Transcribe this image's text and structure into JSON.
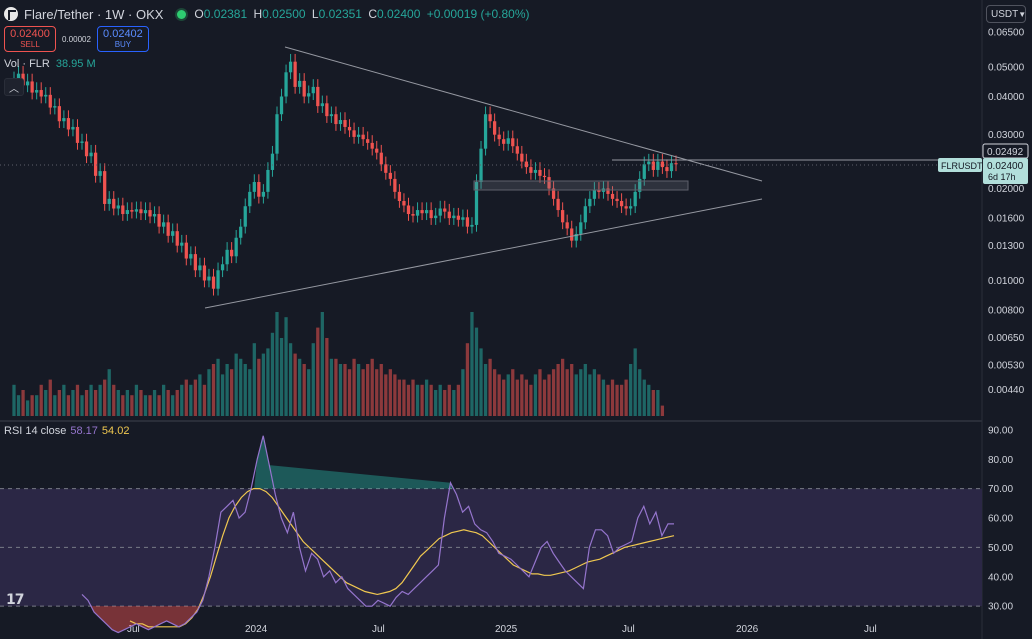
{
  "header": {
    "symbol": "Flare/Tether · 1W · OKX",
    "ohlc": [
      {
        "key": "O",
        "value": "0.02381"
      },
      {
        "key": "H",
        "value": "0.02500"
      },
      {
        "key": "L",
        "value": "0.02351"
      },
      {
        "key": "C",
        "value": "0.02400"
      },
      {
        "key": "",
        "value": "+0.00019 (+0.80%)"
      }
    ]
  },
  "trade": {
    "sell_price": "0.02400",
    "sell_label": "SELL",
    "spread": "0.00002",
    "buy_price": "0.02402",
    "buy_label": "BUY"
  },
  "volume_legend": {
    "label": "Vol · FLR",
    "value": "38.95 M"
  },
  "collapse_icon": "chevron-up-icon",
  "rsi_legend": {
    "label": "RSI 14 close",
    "rsi": "58.17",
    "ma": "54.02"
  },
  "currency": "USDT",
  "price_tags": {
    "high": "0.02492",
    "symbol": "FLRUSDT",
    "last": "0.02400",
    "countdown": "6d 17h"
  },
  "colors": {
    "up": "#26a69a",
    "down": "#ef5350",
    "rsi_line": "#9575cd",
    "rsi_ma": "#f0c850",
    "background": "#161a25",
    "rsi_band": "#2b2745"
  },
  "chart_data": [
    {
      "type": "candlestick",
      "title": "Flare/Tether · 1W · OKX",
      "y_scale": "log",
      "y_ticks": [
        "0.06500",
        "0.05000",
        "0.04000",
        "0.03000",
        "0.02000",
        "0.01600",
        "0.01300",
        "0.01000",
        "0.00800",
        "0.00650",
        "0.00530",
        "0.00440"
      ],
      "x_ticks": [
        "Jul",
        "2024",
        "Jul",
        "2025",
        "Jul",
        "2026",
        "Jul"
      ],
      "close": [
        0.0455,
        0.0475,
        0.0435,
        0.0448,
        0.0412,
        0.042,
        0.04,
        0.0405,
        0.0368,
        0.0372,
        0.0332,
        0.034,
        0.0312,
        0.0318,
        0.0282,
        0.0285,
        0.0255,
        0.0262,
        0.022,
        0.0228,
        0.0178,
        0.0185,
        0.0172,
        0.0176,
        0.0165,
        0.017,
        0.0168,
        0.0171,
        0.0166,
        0.017,
        0.0162,
        0.0165,
        0.015,
        0.0155,
        0.014,
        0.0145,
        0.013,
        0.0133,
        0.0118,
        0.0122,
        0.0108,
        0.0112,
        0.01,
        0.0103,
        0.0094,
        0.0108,
        0.0113,
        0.0126,
        0.012,
        0.0138,
        0.015,
        0.0175,
        0.0195,
        0.021,
        0.0188,
        0.0195,
        0.023,
        0.026,
        0.035,
        0.04,
        0.048,
        0.052,
        0.043,
        0.045,
        0.04,
        0.041,
        0.043,
        0.0372,
        0.038,
        0.0345,
        0.035,
        0.0325,
        0.0335,
        0.0318,
        0.031,
        0.0295,
        0.03,
        0.029,
        0.0282,
        0.027,
        0.0262,
        0.024,
        0.0225,
        0.0215,
        0.0195,
        0.0182,
        0.0176,
        0.0165,
        0.0163,
        0.017,
        0.0166,
        0.017,
        0.016,
        0.0163,
        0.0172,
        0.0168,
        0.016,
        0.0163,
        0.0158,
        0.0161,
        0.015,
        0.0152,
        0.021,
        0.027,
        0.035,
        0.0332,
        0.03,
        0.029,
        0.028,
        0.0292,
        0.0275,
        0.026,
        0.0245,
        0.0235,
        0.0225,
        0.023,
        0.022,
        0.0218,
        0.02,
        0.0185,
        0.017,
        0.0155,
        0.0148,
        0.0135,
        0.0142,
        0.0155,
        0.0175,
        0.0185,
        0.0198,
        0.0195,
        0.02,
        0.0192,
        0.0185,
        0.0182,
        0.0175,
        0.0172,
        0.0175,
        0.0195,
        0.0215,
        0.024,
        0.0245,
        0.023,
        0.0245,
        0.0235,
        0.0228,
        0.0242,
        0.024
      ]
    },
    {
      "type": "bar",
      "title": "Vol · FLR",
      "values_relative": [
        0.3,
        0.2,
        0.25,
        0.15,
        0.2,
        0.2,
        0.3,
        0.25,
        0.35,
        0.2,
        0.25,
        0.3,
        0.2,
        0.25,
        0.3,
        0.2,
        0.25,
        0.3,
        0.25,
        0.3,
        0.35,
        0.45,
        0.3,
        0.25,
        0.2,
        0.25,
        0.2,
        0.3,
        0.25,
        0.2,
        0.2,
        0.25,
        0.2,
        0.3,
        0.25,
        0.2,
        0.25,
        0.3,
        0.35,
        0.3,
        0.35,
        0.4,
        0.3,
        0.45,
        0.5,
        0.55,
        0.4,
        0.5,
        0.45,
        0.6,
        0.55,
        0.5,
        0.45,
        0.7,
        0.55,
        0.6,
        0.65,
        0.8,
        1.0,
        0.75,
        0.95,
        0.7,
        0.6,
        0.55,
        0.5,
        0.45,
        0.7,
        0.85,
        1.0,
        0.75,
        0.55,
        0.55,
        0.5,
        0.5,
        0.45,
        0.55,
        0.5,
        0.45,
        0.5,
        0.55,
        0.45,
        0.5,
        0.4,
        0.45,
        0.4,
        0.35,
        0.35,
        0.3,
        0.35,
        0.3,
        0.3,
        0.35,
        0.3,
        0.25,
        0.3,
        0.25,
        0.3,
        0.25,
        0.3,
        0.45,
        0.7,
        1.0,
        0.85,
        0.65,
        0.5,
        0.55,
        0.45,
        0.4,
        0.35,
        0.4,
        0.45,
        0.35,
        0.4,
        0.35,
        0.3,
        0.4,
        0.45,
        0.35,
        0.4,
        0.45,
        0.5,
        0.55,
        0.45,
        0.5,
        0.4,
        0.45,
        0.5,
        0.4,
        0.45,
        0.4,
        0.35,
        0.3,
        0.35,
        0.3,
        0.3,
        0.35,
        0.5,
        0.65,
        0.45,
        0.35,
        0.3,
        0.25,
        0.25,
        0.1
      ]
    },
    {
      "type": "line",
      "title": "RSI 14 close",
      "y_ticks": [
        "90.00",
        "80.00",
        "70.00",
        "60.00",
        "50.00",
        "40.00",
        "30.00"
      ],
      "ylim": [
        27,
        92
      ],
      "band": [
        30,
        70
      ],
      "series": [
        {
          "name": "RSI",
          "values": [
            34,
            32,
            28,
            26,
            24,
            22,
            21,
            22,
            23,
            24,
            23,
            22,
            23,
            24,
            25,
            24,
            23,
            24,
            26,
            28,
            32,
            40,
            50,
            62,
            64,
            66,
            60,
            62,
            70,
            80,
            88,
            78,
            68,
            60,
            55,
            62,
            50,
            42,
            48,
            46,
            40,
            42,
            38,
            40,
            36,
            34,
            32,
            30,
            30,
            32,
            31,
            30,
            33,
            35,
            34,
            36,
            38,
            40,
            42,
            44,
            60,
            72,
            68,
            62,
            64,
            58,
            56,
            55,
            52,
            48,
            47,
            46,
            44,
            42,
            40,
            45,
            50,
            52,
            48,
            45,
            42,
            40,
            38,
            36,
            50,
            56,
            56,
            54,
            48,
            50,
            51,
            52,
            60,
            64,
            58,
            62,
            54,
            58,
            58
          ]
        },
        {
          "name": "MA",
          "values": [
            25,
            24,
            24,
            23,
            23,
            23,
            23,
            23,
            23,
            24,
            26,
            29,
            34,
            40,
            47,
            54,
            60,
            64,
            67,
            69,
            70,
            70,
            69,
            67,
            64,
            61,
            58,
            55,
            52,
            50,
            48,
            46,
            44,
            42,
            40,
            38,
            37,
            36,
            35,
            34.5,
            34,
            34.5,
            35,
            36,
            38,
            41,
            44,
            47,
            49,
            51,
            53,
            54,
            55,
            55.5,
            56,
            55.5,
            55,
            54,
            52,
            50,
            48,
            46,
            44,
            43,
            42,
            41,
            41,
            40.5,
            40.5,
            41,
            41.5,
            42,
            43,
            44,
            45,
            45.5,
            46,
            47,
            48,
            49,
            50,
            50.5,
            51,
            51.5,
            52,
            52.5,
            53,
            53.5,
            54
          ]
        }
      ]
    }
  ]
}
